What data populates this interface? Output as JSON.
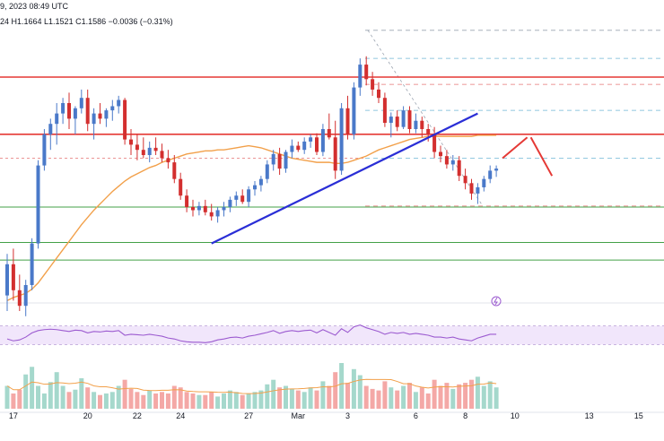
{
  "header": {
    "date_line": "9, 2023 08:49 UTC",
    "ohlc_line": "24  H1.1664  L1.1521  C1.1586  −0.0036 (−0.31%)"
  },
  "colors": {
    "up": "#26a69a",
    "down": "#ef5350",
    "red_line": "#e53935",
    "green_line": "#43a047",
    "trend": "#2a2ed6",
    "ma": "#f2a04a",
    "rsi": "#9c5bd0",
    "rsi_band": "#f1e6fb",
    "fib": "#9aa3b0",
    "vol_up": "#a5d8cc",
    "vol_down": "#f4a8a6"
  },
  "chart_data": [
    {
      "type": "candlestick",
      "x_labels": [
        "17",
        "20",
        "22",
        "24",
        "27",
        "Mar",
        "3",
        "6",
        "8",
        "10",
        "13",
        "15"
      ],
      "candles": [
        [
          1.156,
          1.16,
          1.1545,
          1.159
        ],
        [
          1.159,
          1.1605,
          1.1555,
          1.1565
        ],
        [
          1.1565,
          1.158,
          1.1545,
          1.155
        ],
        [
          1.155,
          1.1575,
          1.154,
          1.157
        ],
        [
          1.157,
          1.1615,
          1.1565,
          1.161
        ],
        [
          1.161,
          1.169,
          1.1605,
          1.1685
        ],
        [
          1.1685,
          1.172,
          1.168,
          1.1715
        ],
        [
          1.1715,
          1.173,
          1.17,
          1.1725
        ],
        [
          1.1725,
          1.1745,
          1.1705,
          1.1735
        ],
        [
          1.1735,
          1.175,
          1.1725,
          1.1745
        ],
        [
          1.1745,
          1.1755,
          1.172,
          1.173
        ],
        [
          1.173,
          1.1742,
          1.1715,
          1.174
        ],
        [
          1.174,
          1.1758,
          1.1735,
          1.175
        ],
        [
          1.175,
          1.1758,
          1.1718,
          1.1725
        ],
        [
          1.1725,
          1.174,
          1.171,
          1.1735
        ],
        [
          1.1735,
          1.1745,
          1.1725,
          1.173
        ],
        [
          1.173,
          1.174,
          1.1722,
          1.1738
        ],
        [
          1.1738,
          1.1748,
          1.1728,
          1.1742
        ],
        [
          1.1742,
          1.1752,
          1.1735,
          1.1748
        ],
        [
          1.1748,
          1.175,
          1.1705,
          1.171
        ],
        [
          1.171,
          1.172,
          1.1695,
          1.1705
        ],
        [
          1.1705,
          1.1715,
          1.169,
          1.17
        ],
        [
          1.17,
          1.1712,
          1.1692,
          1.1695
        ],
        [
          1.1695,
          1.1708,
          1.1688,
          1.1702
        ],
        [
          1.1702,
          1.1712,
          1.1695,
          1.1699
        ],
        [
          1.1699,
          1.1706,
          1.1688,
          1.1692
        ],
        [
          1.1692,
          1.17,
          1.1682,
          1.1688
        ],
        [
          1.1688,
          1.1695,
          1.1668,
          1.1672
        ],
        [
          1.1672,
          1.1678,
          1.1652,
          1.1656
        ],
        [
          1.1656,
          1.1662,
          1.164,
          1.1645
        ],
        [
          1.1645,
          1.1652,
          1.1636,
          1.1642
        ],
        [
          1.1642,
          1.165,
          1.1637,
          1.1646
        ],
        [
          1.1646,
          1.1652,
          1.1637,
          1.164
        ],
        [
          1.164,
          1.1648,
          1.1632,
          1.1636
        ],
        [
          1.1636,
          1.1645,
          1.163,
          1.1642
        ],
        [
          1.1642,
          1.165,
          1.1636,
          1.1645
        ],
        [
          1.1645,
          1.1655,
          1.164,
          1.1652
        ],
        [
          1.1652,
          1.166,
          1.1646,
          1.1656
        ],
        [
          1.1656,
          1.1662,
          1.1648,
          1.165
        ],
        [
          1.165,
          1.1665,
          1.1645,
          1.1662
        ],
        [
          1.1662,
          1.167,
          1.1656,
          1.1666
        ],
        [
          1.1666,
          1.1675,
          1.166,
          1.1672
        ],
        [
          1.1672,
          1.169,
          1.1668,
          1.1686
        ],
        [
          1.1686,
          1.17,
          1.168,
          1.1696
        ],
        [
          1.1696,
          1.1702,
          1.1676,
          1.1682
        ],
        [
          1.1682,
          1.17,
          1.1678,
          1.1698
        ],
        [
          1.1698,
          1.171,
          1.1692,
          1.1704
        ],
        [
          1.1704,
          1.1708,
          1.1698,
          1.17
        ],
        [
          1.17,
          1.1712,
          1.1696,
          1.1708
        ],
        [
          1.1708,
          1.1715,
          1.1702,
          1.1712
        ],
        [
          1.1712,
          1.1716,
          1.1695,
          1.1698
        ],
        [
          1.1698,
          1.1725,
          1.1694,
          1.172
        ],
        [
          1.172,
          1.1735,
          1.171,
          1.1712
        ],
        [
          1.1712,
          1.1728,
          1.1672,
          1.168
        ],
        [
          1.168,
          1.1745,
          1.1676,
          1.174
        ],
        [
          1.174,
          1.1752,
          1.171,
          1.1715
        ],
        [
          1.1715,
          1.1765,
          1.171,
          1.176
        ],
        [
          1.176,
          1.1788,
          1.1752,
          1.1782
        ],
        [
          1.1782,
          1.179,
          1.1762,
          1.1768
        ],
        [
          1.1768,
          1.1775,
          1.1752,
          1.1758
        ],
        [
          1.1758,
          1.1765,
          1.1745,
          1.175
        ],
        [
          1.175,
          1.1755,
          1.1722,
          1.1726
        ],
        [
          1.1726,
          1.1736,
          1.1712,
          1.1732
        ],
        [
          1.1732,
          1.1738,
          1.1718,
          1.1722
        ],
        [
          1.1722,
          1.1742,
          1.172,
          1.1738
        ],
        [
          1.1738,
          1.1742,
          1.1716,
          1.172
        ],
        [
          1.172,
          1.1735,
          1.1716,
          1.1728
        ],
        [
          1.1728,
          1.1732,
          1.1712,
          1.172
        ],
        [
          1.172,
          1.1725,
          1.1708,
          1.1715
        ],
        [
          1.1715,
          1.1722,
          1.1692,
          1.1698
        ],
        [
          1.1698,
          1.1704,
          1.1688,
          1.1694
        ],
        [
          1.1694,
          1.17,
          1.1682,
          1.1686
        ],
        [
          1.1686,
          1.1695,
          1.168,
          1.169
        ],
        [
          1.169,
          1.1694,
          1.167,
          1.1675
        ],
        [
          1.1675,
          1.1682,
          1.1662,
          1.1668
        ],
        [
          1.1668,
          1.1672,
          1.1652,
          1.1658
        ],
        [
          1.1658,
          1.1668,
          1.1648,
          1.1664
        ],
        [
          1.1664,
          1.1675,
          1.166,
          1.1672
        ],
        [
          1.1672,
          1.1685,
          1.1668,
          1.168
        ],
        [
          1.168,
          1.1685,
          1.1674,
          1.1682
        ]
      ],
      "ma": [
        1.1555,
        1.1558,
        1.156,
        1.1562,
        1.1566,
        1.1572,
        1.158,
        1.1588,
        1.1596,
        1.1604,
        1.1612,
        1.162,
        1.1628,
        1.1635,
        1.1642,
        1.1648,
        1.1654,
        1.166,
        1.1665,
        1.167,
        1.1674,
        1.1677,
        1.168,
        1.1683,
        1.1685,
        1.1688,
        1.169,
        1.1692,
        1.1694,
        1.1696,
        1.1697,
        1.1698,
        1.1699,
        1.1699,
        1.17,
        1.17,
        1.1701,
        1.1702,
        1.1703,
        1.1704,
        1.1703,
        1.1702,
        1.17,
        1.1698,
        1.1696,
        1.1694,
        1.1692,
        1.1691,
        1.169,
        1.1689,
        1.1688,
        1.1688,
        1.1688,
        1.1687,
        1.1687,
        1.1688,
        1.169,
        1.1692,
        1.1694,
        1.1697,
        1.17,
        1.1702,
        1.1704,
        1.1706,
        1.1708,
        1.171,
        1.1711,
        1.1712,
        1.1713,
        1.1713,
        1.1713,
        1.1713,
        1.1713,
        1.1713,
        1.1713,
        1.1713,
        1.1714,
        1.1714,
        1.1714,
        1.1714
      ],
      "horizontal_levels": [
        {
          "value": 1.177,
          "color": "red"
        },
        {
          "value": 1.1715,
          "color": "red"
        },
        {
          "value": 1.1645,
          "color": "green"
        },
        {
          "value": 1.1611,
          "color": "green"
        },
        {
          "value": 1.1594,
          "color": "green"
        }
      ],
      "fib_levels": [
        1.1815,
        1.1788,
        1.1763,
        1.1738,
        1.1715,
        1.1692,
        1.1646
      ],
      "trendline": {
        "start": [
          33,
          1.161
        ],
        "end": [
          76,
          1.1735
        ]
      },
      "projection": [
        [
          80,
          1.1692
        ],
        [
          84,
          1.1712
        ],
        [
          88,
          1.1675
        ]
      ]
    },
    {
      "type": "line",
      "name_hidden": true,
      "rsi": [
        42,
        38,
        40,
        46,
        55,
        60,
        62,
        63,
        62,
        60,
        58,
        61,
        60,
        55,
        58,
        57,
        59,
        58,
        60,
        50,
        52,
        51,
        50,
        52,
        50,
        48,
        44,
        42,
        38,
        36,
        35,
        35,
        34,
        36,
        40,
        42,
        45,
        46,
        44,
        48,
        50,
        53,
        56,
        60,
        54,
        58,
        60,
        58,
        60,
        61,
        55,
        62,
        56,
        50,
        64,
        56,
        68,
        72,
        66,
        62,
        58,
        52,
        56,
        54,
        56,
        52,
        54,
        52,
        50,
        46,
        46,
        44,
        46,
        42,
        40,
        38,
        44,
        48,
        52,
        52
      ],
      "band": [
        30,
        70
      ]
    },
    {
      "type": "bar",
      "volumes": [
        30,
        20,
        25,
        45,
        55,
        30,
        20,
        35,
        48,
        30,
        22,
        25,
        40,
        28,
        22,
        18,
        20,
        22,
        30,
        38,
        26,
        22,
        18,
        24,
        20,
        22,
        20,
        30,
        28,
        22,
        20,
        18,
        18,
        22,
        16,
        20,
        24,
        22,
        18,
        20,
        22,
        24,
        32,
        38,
        28,
        30,
        26,
        24,
        22,
        28,
        24,
        36,
        30,
        48,
        60,
        34,
        52,
        44,
        30,
        26,
        24,
        36,
        28,
        24,
        30,
        34,
        22,
        28,
        20,
        38,
        30,
        34,
        26,
        32,
        34,
        38,
        42,
        30,
        36,
        28
      ]
    }
  ]
}
